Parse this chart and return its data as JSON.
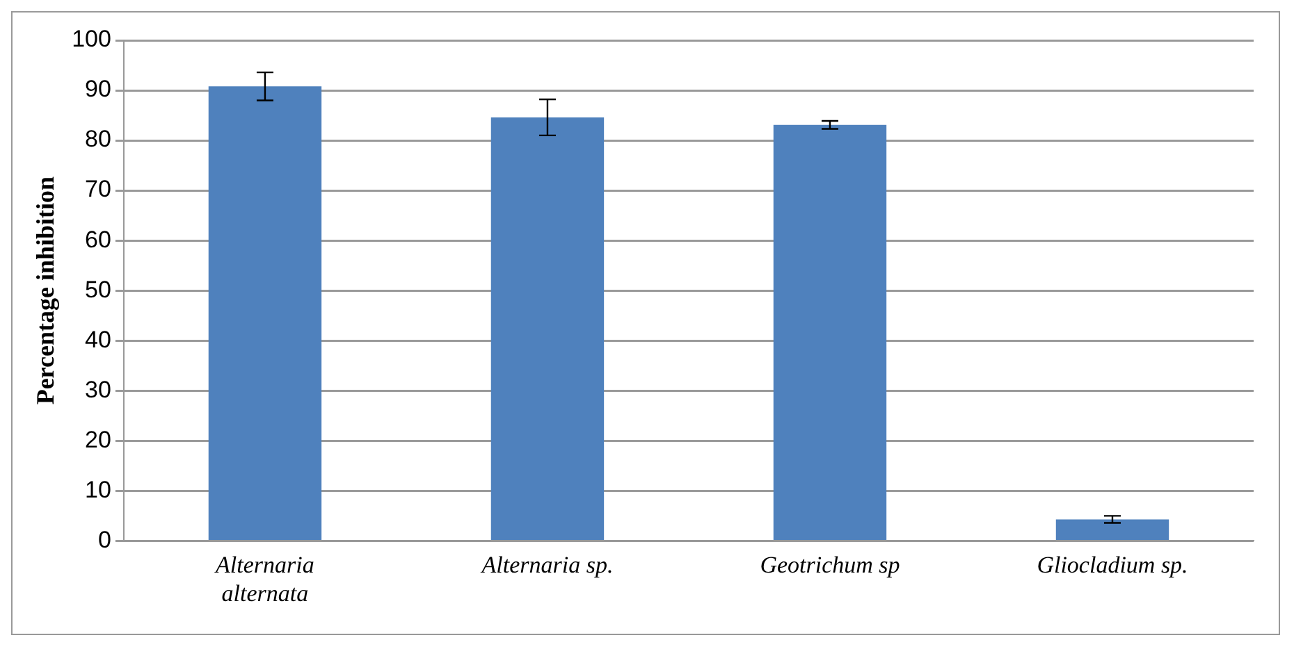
{
  "chart_data": {
    "type": "bar",
    "ylabel": "Percentage inhibition",
    "categories": [
      "Alternaria alternata",
      "Alternaria sp.",
      "Geotrichum sp",
      "Gliocladium sp."
    ],
    "values": [
      90.8,
      84.6,
      83.1,
      4.3
    ],
    "errors": [
      2.8,
      3.6,
      0.8,
      0.7
    ],
    "color": "#4f81bd",
    "ylim": [
      0,
      100
    ],
    "yticks": [
      0,
      10,
      20,
      30,
      40,
      50,
      60,
      70,
      80,
      90,
      100
    ],
    "grid": "y",
    "legend": false
  }
}
